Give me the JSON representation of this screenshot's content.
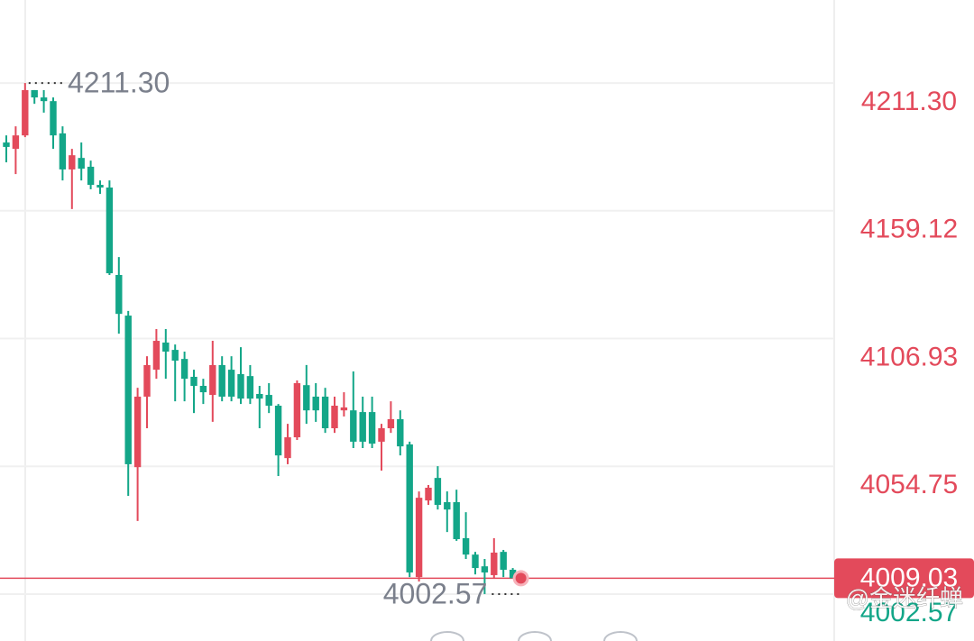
{
  "chart_data": {
    "type": "candlestick",
    "categories": [
      null,
      null,
      null,
      null,
      null,
      null,
      null,
      null,
      null,
      null,
      null,
      null,
      null,
      null,
      null,
      null,
      null,
      null,
      null,
      null,
      null,
      null,
      null,
      null,
      null,
      null,
      null,
      null,
      null,
      null,
      null,
      null,
      null,
      null,
      null,
      null,
      null,
      null,
      null,
      null,
      null,
      null,
      null,
      null,
      null,
      null,
      null,
      null,
      null,
      null,
      null,
      null,
      null,
      null,
      null
    ],
    "open": [
      4187.0,
      4184.4,
      4189.9,
      4208.4,
      4205.4,
      4203.9,
      4190.7,
      4176.0,
      4180.7,
      4177.1,
      4169.7,
      4168.6,
      4132.9,
      4116.3,
      4054.4,
      4083.2,
      4094.2,
      4105.3,
      4102.3,
      4098.6,
      4091.3,
      4087.6,
      4083.9,
      4096.1,
      4094.2,
      4092.4,
      4091.6,
      4084.3,
      4083.9,
      4079.5,
      4058.1,
      4066.6,
      4087.9,
      4083.2,
      4083.2,
      4070.3,
      4077.6,
      4077.6,
      4076.9,
      4076.9,
      4064.8,
      4070.3,
      4074.0,
      4063.7,
      4009.5,
      4040.8,
      4050.0,
      4040.1,
      4040.1,
      4025.4,
      4018.7,
      4013.9,
      4010.3,
      4019.8,
      4012.5
    ],
    "high": [
      4189.9,
      4193.6,
      4211.3,
      4208.4,
      4208.4,
      4205.4,
      4193.6,
      4184.4,
      4187.0,
      4179.6,
      4171.5,
      4171.5,
      4140.2,
      4118.2,
      4086.8,
      4099.7,
      4110.8,
      4110.8,
      4104.5,
      4101.6,
      4094.2,
      4090.5,
      4106.0,
      4099.7,
      4099.7,
      4103.4,
      4096.1,
      4087.6,
      4088.7,
      4080.2,
      4072.1,
      4089.8,
      4096.1,
      4088.7,
      4086.8,
      4083.2,
      4085.0,
      4093.5,
      4083.2,
      4083.2,
      4072.1,
      4081.3,
      4077.6,
      4064.8,
      4044.5,
      4047.1,
      4054.8,
      4044.5,
      4045.2,
      4036.0,
      4019.8,
      4016.9,
      4025.4,
      4020.6,
      4013.2
    ],
    "low": [
      4178.9,
      4174.1,
      4189.2,
      4202.8,
      4199.2,
      4184.4,
      4171.5,
      4159.8,
      4171.5,
      4167.9,
      4166.0,
      4132.9,
      4108.9,
      4042.7,
      4032.4,
      4070.3,
      4090.5,
      4090.5,
      4081.3,
      4081.3,
      4076.5,
      4080.2,
      4072.9,
      4081.3,
      4081.3,
      4080.2,
      4080.2,
      4070.3,
      4076.5,
      4050.8,
      4055.6,
      4065.5,
      4072.1,
      4072.9,
      4068.4,
      4068.4,
      4075.1,
      4062.2,
      4062.2,
      4062.2,
      4053.0,
      4068.4,
      4059.2,
      4009.5,
      4007.7,
      4039.0,
      4037.1,
      4027.9,
      4024.3,
      4016.9,
      4010.6,
      4002.57,
      4008.8,
      4009.5,
      4009.03
    ],
    "close": [
      4185.2,
      4189.9,
      4208.4,
      4205.4,
      4203.9,
      4189.9,
      4176.0,
      4181.8,
      4176.3,
      4169.7,
      4168.6,
      4133.6,
      4117.0,
      4055.6,
      4083.2,
      4096.1,
      4106.0,
      4101.6,
      4097.9,
      4090.5,
      4087.6,
      4085.0,
      4096.1,
      4083.2,
      4083.2,
      4082.4,
      4082.4,
      4082.4,
      4079.5,
      4059.2,
      4066.6,
      4088.7,
      4077.6,
      4077.6,
      4070.3,
      4079.5,
      4078.8,
      4064.8,
      4064.8,
      4064.0,
      4070.3,
      4074.0,
      4062.9,
      4011.4,
      4041.9,
      4046.0,
      4039.0,
      4037.1,
      4025.0,
      4018.7,
      4013.2,
      4011.4,
      4019.5,
      4012.5,
      4009.03
    ],
    "up_color": "#e34a5b",
    "down_color": "#13a688",
    "ylim": [
      3983.4,
      4245.2
    ],
    "yticks": [
      {
        "value": 4211.3,
        "label": "4211.30"
      },
      4159.12,
      4106.93,
      4054.75,
      4002.57
    ],
    "grid": true,
    "high_label": {
      "value": 4211.3,
      "label": "4211.30"
    },
    "low_label": {
      "value": 4002.57,
      "label": "4002.57"
    },
    "last_price": {
      "value": 4009.03,
      "label": "4009.03"
    },
    "watermark": "@金迷纤蝉"
  }
}
